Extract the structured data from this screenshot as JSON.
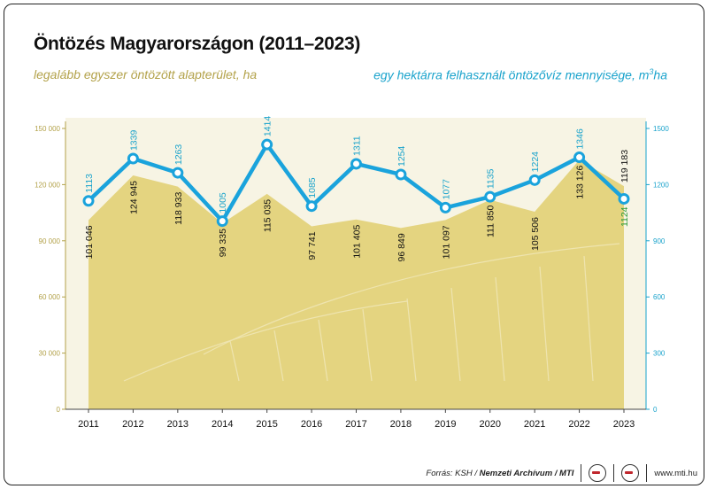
{
  "title": "Öntözés Magyarországon (2011–2023)",
  "subtitle_left": "legalább egyszer öntözött alapterület, ha",
  "subtitle_right_main": "egy hektárra felhasznált öntözővíz mennyisége, m",
  "subtitle_right_sup": "3",
  "subtitle_right_end": "ha",
  "footer": {
    "source_prefix": "Forrás: KSH /",
    "source_bold": "Nemzeti Archívum / MTI",
    "website": "www.mti.hu"
  },
  "colors": {
    "area": "#e3d27a",
    "line": "#1aa3dc",
    "left_axis": "#b3a24a",
    "right_axis": "#1aa3cc"
  },
  "chart_data": {
    "type": "area+line",
    "categories": [
      "2011",
      "2012",
      "2013",
      "2014",
      "2015",
      "2016",
      "2017",
      "2018",
      "2019",
      "2020",
      "2021",
      "2022",
      "2023"
    ],
    "series": [
      {
        "name": "legalább egyszer öntözött alapterület, ha",
        "axis": "left",
        "type": "area",
        "values": [
          101046,
          124945,
          118933,
          99335,
          115035,
          97741,
          101405,
          96849,
          101097,
          111850,
          105506,
          133126,
          119183
        ],
        "labels": [
          "101 046",
          "124 945",
          "118 933",
          "99 335",
          "115 035",
          "97 741",
          "101 405",
          "96 849",
          "101 097",
          "111 850",
          "105 506",
          "133 126",
          "119 183"
        ]
      },
      {
        "name": "egy hektárra felhasznált öntözővíz mennyisége, m3/ha",
        "axis": "right",
        "type": "line",
        "values": [
          1113,
          1339,
          1263,
          1005,
          1414,
          1085,
          1311,
          1254,
          1077,
          1135,
          1224,
          1346,
          1124
        ],
        "labels": [
          "1113",
          "1339",
          "1263",
          "1005",
          "1414",
          "1085",
          "1311",
          "1254",
          "1077",
          "1135",
          "1224",
          "1346",
          "1124"
        ]
      }
    ],
    "left_axis": {
      "min": 0,
      "max": 150000,
      "ticks": [
        0,
        30000,
        60000,
        90000,
        120000,
        150000
      ],
      "tick_labels": [
        "0",
        "30 000",
        "60 000",
        "90 000",
        "120 000",
        "150 000"
      ]
    },
    "right_axis": {
      "min": 0,
      "max": 1500,
      "ticks": [
        0,
        300,
        600,
        900,
        1200,
        1500
      ],
      "tick_labels": [
        "0",
        "300",
        "600",
        "900",
        "1200",
        "1500"
      ]
    }
  }
}
